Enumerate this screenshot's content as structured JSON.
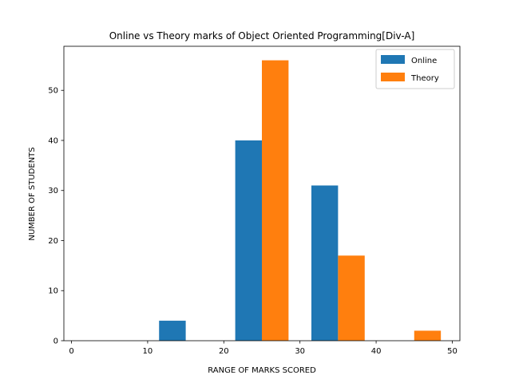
{
  "chart_data": {
    "type": "bar",
    "title": "Online vs Theory marks of Object Oriented Programming[Div-A]",
    "xlabel": "RANGE OF MARKS SCORED",
    "ylabel": "NUMBER OF STUDENTS",
    "xlim": [
      -1,
      51
    ],
    "ylim": [
      0,
      58.8
    ],
    "xticks": [
      0,
      10,
      20,
      30,
      40,
      50
    ],
    "yticks": [
      0,
      10,
      20,
      30,
      40,
      50
    ],
    "bin_width": 3.5,
    "grid": false,
    "legend_position": "upper right",
    "series": [
      {
        "name": "Online",
        "color": "#1f77b4",
        "bins": [
          {
            "x_start": 11.5,
            "x_end": 15,
            "value": 4
          },
          {
            "x_start": 21.5,
            "x_end": 25,
            "value": 40
          },
          {
            "x_start": 31.5,
            "x_end": 35,
            "value": 31
          }
        ]
      },
      {
        "name": "Theory",
        "color": "#ff7f0e",
        "bins": [
          {
            "x_start": 25,
            "x_end": 28.5,
            "value": 56
          },
          {
            "x_start": 35,
            "x_end": 38.5,
            "value": 17
          },
          {
            "x_start": 45,
            "x_end": 48.5,
            "value": 2
          }
        ]
      }
    ]
  }
}
